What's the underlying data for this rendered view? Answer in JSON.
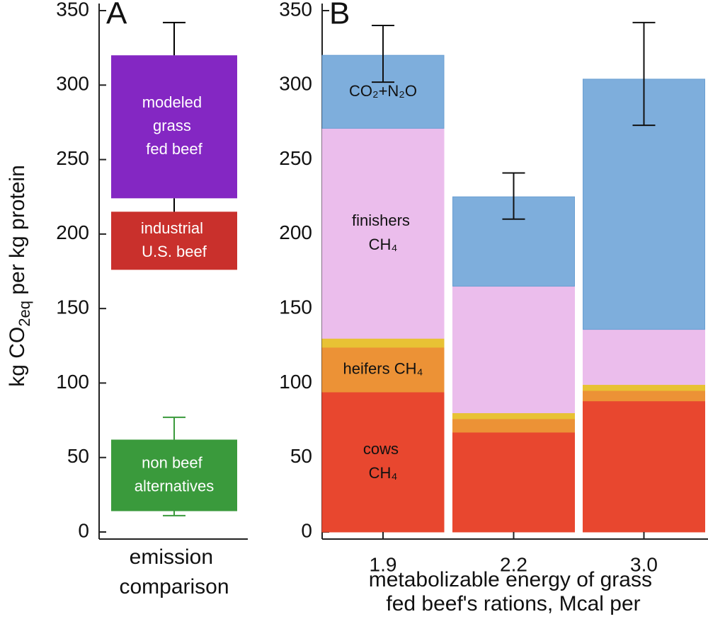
{
  "chart_data": [
    {
      "type": "floating_bar",
      "panel_label": "A",
      "y_label_parts": [
        "kg CO",
        "2eq",
        " per kg protein"
      ],
      "x_label": "emission comparison",
      "ylim": [
        0,
        350
      ],
      "yticks": [
        0,
        50,
        100,
        150,
        200,
        250,
        300,
        350
      ],
      "items": [
        {
          "name": "modeled grass fed beef",
          "color": "#8427c3",
          "low": 224,
          "high": 320,
          "whisker_low": 210,
          "whisker_high": 342,
          "whisker_color": "#000000"
        },
        {
          "name": "industrial U.S. beef",
          "color": "#c9302c",
          "low": 176,
          "high": 215
        },
        {
          "name": "non beef alternatives",
          "color": "#3a9a3c",
          "low": 14,
          "high": 62,
          "whisker_low": 11,
          "whisker_high": 77,
          "whisker_color": "#3a9a3c"
        }
      ]
    },
    {
      "type": "stacked_bar",
      "panel_label": "B",
      "x_label": "metabolizable energy of grass fed beef's rations, Mcal per dry kg",
      "categories": [
        "1.9",
        "2.2",
        "3.0"
      ],
      "ylim": [
        0,
        350
      ],
      "yticks": [
        0,
        50,
        100,
        150,
        200,
        250,
        300,
        350
      ],
      "series": [
        {
          "name": "cows CH₄",
          "color": "#e8472f",
          "values": [
            94,
            67,
            88
          ]
        },
        {
          "name": "heifers CH₄",
          "color": "#ec9236",
          "values": [
            30,
            9,
            7
          ]
        },
        {
          "color": "#e8c234",
          "values": [
            6,
            4,
            4
          ]
        },
        {
          "name": "finishers CH₄",
          "color": "#ebbdec",
          "values": [
            141,
            85,
            37
          ]
        },
        {
          "name": "CO₂+N₂O",
          "color": "#7eaedc",
          "values": [
            49,
            60,
            168
          ]
        }
      ],
      "error_low": [
        302,
        210,
        273
      ],
      "error_high": [
        340,
        241,
        342
      ]
    }
  ]
}
